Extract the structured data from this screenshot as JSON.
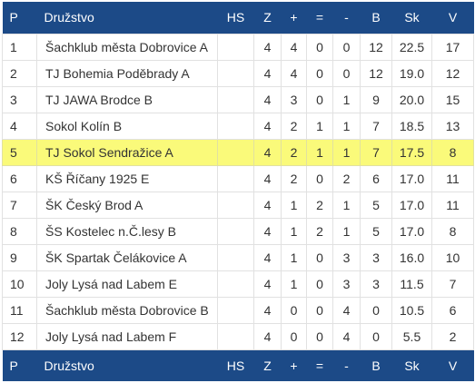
{
  "columns": [
    "P",
    "Družstvo",
    "HS",
    "Z",
    "+",
    "=",
    "-",
    "B",
    "Sk",
    "V"
  ],
  "highlight_color": "#fafa7a",
  "header_color": "#1c4a87",
  "rows": [
    {
      "p": "1",
      "team": "Šachklub města Dobrovice A",
      "hs": "",
      "z": "4",
      "plus": "4",
      "eq": "0",
      "minus": "0",
      "b": "12",
      "sk": "22.5",
      "v": "17"
    },
    {
      "p": "2",
      "team": "TJ Bohemia Poděbrady A",
      "hs": "",
      "z": "4",
      "plus": "4",
      "eq": "0",
      "minus": "0",
      "b": "12",
      "sk": "19.0",
      "v": "12"
    },
    {
      "p": "3",
      "team": "TJ JAWA Brodce B",
      "hs": "",
      "z": "4",
      "plus": "3",
      "eq": "0",
      "minus": "1",
      "b": "9",
      "sk": "20.0",
      "v": "15"
    },
    {
      "p": "4",
      "team": "Sokol Kolín B",
      "hs": "",
      "z": "4",
      "plus": "2",
      "eq": "1",
      "minus": "1",
      "b": "7",
      "sk": "18.5",
      "v": "13"
    },
    {
      "p": "5",
      "team": "TJ Sokol Sendražice A",
      "hs": "",
      "z": "4",
      "plus": "2",
      "eq": "1",
      "minus": "1",
      "b": "7",
      "sk": "17.5",
      "v": "8",
      "highlighted": true
    },
    {
      "p": "6",
      "team": "KŠ Říčany 1925 E",
      "hs": "",
      "z": "4",
      "plus": "2",
      "eq": "0",
      "minus": "2",
      "b": "6",
      "sk": "17.0",
      "v": "11"
    },
    {
      "p": "7",
      "team": "ŠK Český Brod A",
      "hs": "",
      "z": "4",
      "plus": "1",
      "eq": "2",
      "minus": "1",
      "b": "5",
      "sk": "17.0",
      "v": "11"
    },
    {
      "p": "8",
      "team": "ŠS Kostelec n.Č.lesy B",
      "hs": "",
      "z": "4",
      "plus": "1",
      "eq": "2",
      "minus": "1",
      "b": "5",
      "sk": "17.0",
      "v": "8"
    },
    {
      "p": "9",
      "team": "ŠK Spartak Čelákovice A",
      "hs": "",
      "z": "4",
      "plus": "1",
      "eq": "0",
      "minus": "3",
      "b": "3",
      "sk": "16.0",
      "v": "10"
    },
    {
      "p": "10",
      "team": "Joly Lysá nad Labem E",
      "hs": "",
      "z": "4",
      "plus": "1",
      "eq": "0",
      "minus": "3",
      "b": "3",
      "sk": "11.5",
      "v": "7"
    },
    {
      "p": "11",
      "team": "Šachklub města Dobrovice B",
      "hs": "",
      "z": "4",
      "plus": "0",
      "eq": "0",
      "minus": "4",
      "b": "0",
      "sk": "10.5",
      "v": "6"
    },
    {
      "p": "12",
      "team": "Joly Lysá nad Labem F",
      "hs": "",
      "z": "4",
      "plus": "0",
      "eq": "0",
      "minus": "4",
      "b": "0",
      "sk": "5.5",
      "v": "2"
    }
  ]
}
